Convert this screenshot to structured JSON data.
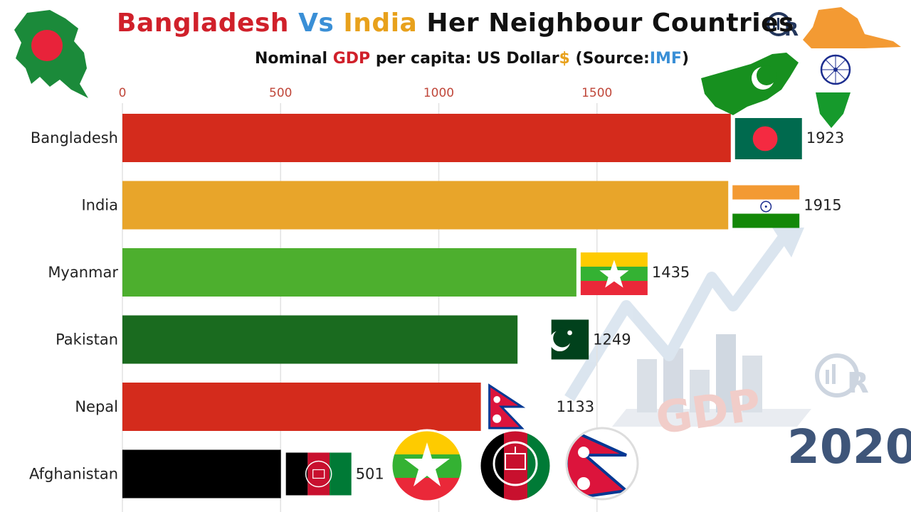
{
  "header": {
    "title_part1": "Bangladesh",
    "title_part2": "Vs",
    "title_part3": "India",
    "title_part4": "Her Neighbour Countries",
    "subtitle_part1": "Nominal",
    "subtitle_part2": "GDP",
    "subtitle_part3": "per capita: US Dollar",
    "subtitle_part4": "$",
    "subtitle_part5": "(Source:",
    "subtitle_part6": "IMF",
    "subtitle_part7": ")"
  },
  "year_label": "2020",
  "decor": {
    "gdp_watermark": "GDP",
    "logo_text": "R"
  },
  "colors": {
    "accent_red": "#d42b1c",
    "accent_gold": "#e8a52a",
    "accent_blue": "#3a8fd6",
    "year_color": "#3e5579"
  },
  "chart_data": {
    "type": "bar",
    "orientation": "horizontal",
    "title": "Nominal GDP per capita: US Dollar $ (Source:IMF)",
    "categories": [
      "Bangladesh",
      "India",
      "Myanmar",
      "Pakistan",
      "Nepal",
      "Afghanistan"
    ],
    "values": [
      1923,
      1915,
      1435,
      1249,
      1133,
      501
    ],
    "value_labels": [
      "1923",
      "1915",
      "1435",
      "1249",
      "1133",
      "501"
    ],
    "bar_colors": [
      "#d42b1c",
      "#e8a52a",
      "#4daf2e",
      "#1a6b1f",
      "#d42b1c",
      "#000000"
    ],
    "flag_icons": [
      "bangladesh-flag",
      "india-flag",
      "myanmar-flag",
      "pakistan-flag",
      "nepal-flag",
      "afghanistan-flag"
    ],
    "x_ticks": [
      0,
      500,
      1000,
      1500
    ],
    "x_tick_labels": [
      "0",
      "500",
      "1000",
      "1500"
    ],
    "xlim": [
      0,
      2000
    ],
    "grid": "vertical lines",
    "legend": "none"
  }
}
